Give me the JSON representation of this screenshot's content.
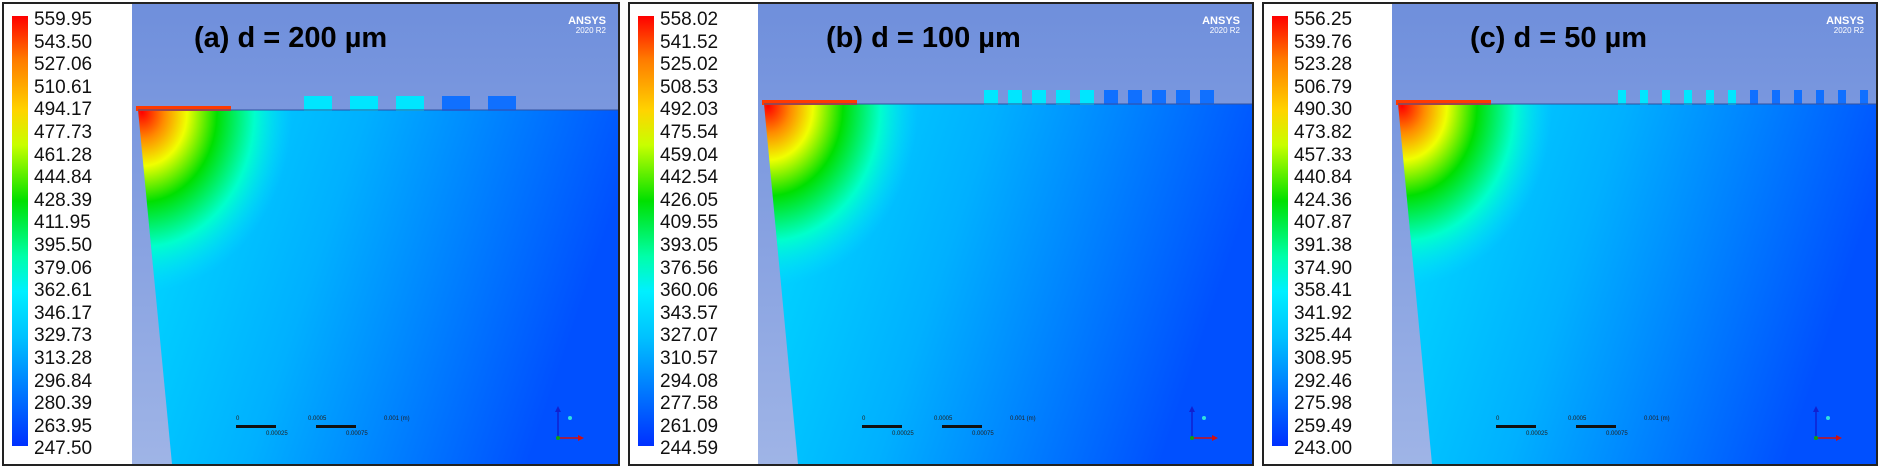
{
  "panels": [
    {
      "title": "(a) d = 200 µm",
      "brand": "ANSYS",
      "version": "2020 R2",
      "legend": [
        "559.95",
        "543.50",
        "527.06",
        "510.61",
        "494.17",
        "477.73",
        "461.28",
        "444.84",
        "428.39",
        "411.95",
        "395.50",
        "379.06",
        "362.61",
        "346.17",
        "329.73",
        "313.28",
        "296.84",
        "280.39",
        "263.95",
        "247.50"
      ],
      "fins": 5,
      "scale": [
        "0",
        "0.0005",
        "0.001 (m)",
        "0.00025",
        "0.00075"
      ]
    },
    {
      "title": "(b) d = 100 µm",
      "brand": "ANSYS",
      "version": "2020 R2",
      "legend": [
        "558.02",
        "541.52",
        "525.02",
        "508.53",
        "492.03",
        "475.54",
        "459.04",
        "442.54",
        "426.05",
        "409.55",
        "393.05",
        "376.56",
        "360.06",
        "343.57",
        "327.07",
        "310.57",
        "294.08",
        "277.58",
        "261.09",
        "244.59"
      ],
      "fins": 10,
      "scale": [
        "0",
        "0.0005",
        "0.001 (m)",
        "0.00025",
        "0.00075"
      ]
    },
    {
      "title": "(c) d = 50 µm",
      "brand": "ANSYS",
      "version": "2020 R2",
      "legend": [
        "556.25",
        "539.76",
        "523.28",
        "506.79",
        "490.30",
        "473.82",
        "457.33",
        "440.84",
        "424.36",
        "407.87",
        "391.38",
        "374.90",
        "358.41",
        "341.92",
        "325.44",
        "308.95",
        "292.46",
        "275.98",
        "259.49",
        "243.00"
      ],
      "fins": 12,
      "scale": [
        "0",
        "0.0005",
        "0.001 (m)",
        "0.00025",
        "0.00075"
      ]
    }
  ]
}
